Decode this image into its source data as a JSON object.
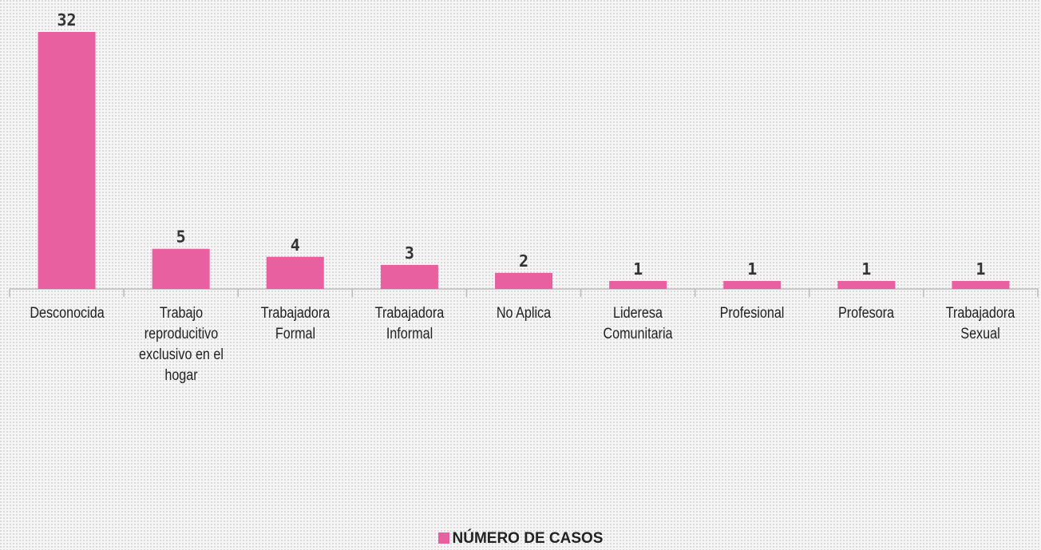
{
  "chart_data": {
    "type": "bar",
    "categories": [
      "Desconocida",
      "Trabajo reproducitivo exclusivo en el hogar",
      "Trabajadora Formal",
      "Trabajadora Informal",
      "No Aplica",
      "Lideresa Comunitaria",
      "Profesional",
      "Profesora",
      "Trabajadora Sexual"
    ],
    "series": [
      {
        "name": "NÚMERO DE CASOS",
        "color": "#e8609f",
        "values": [
          32,
          5,
          4,
          3,
          2,
          1,
          1,
          1,
          1
        ]
      }
    ],
    "legend": "bottom"
  }
}
